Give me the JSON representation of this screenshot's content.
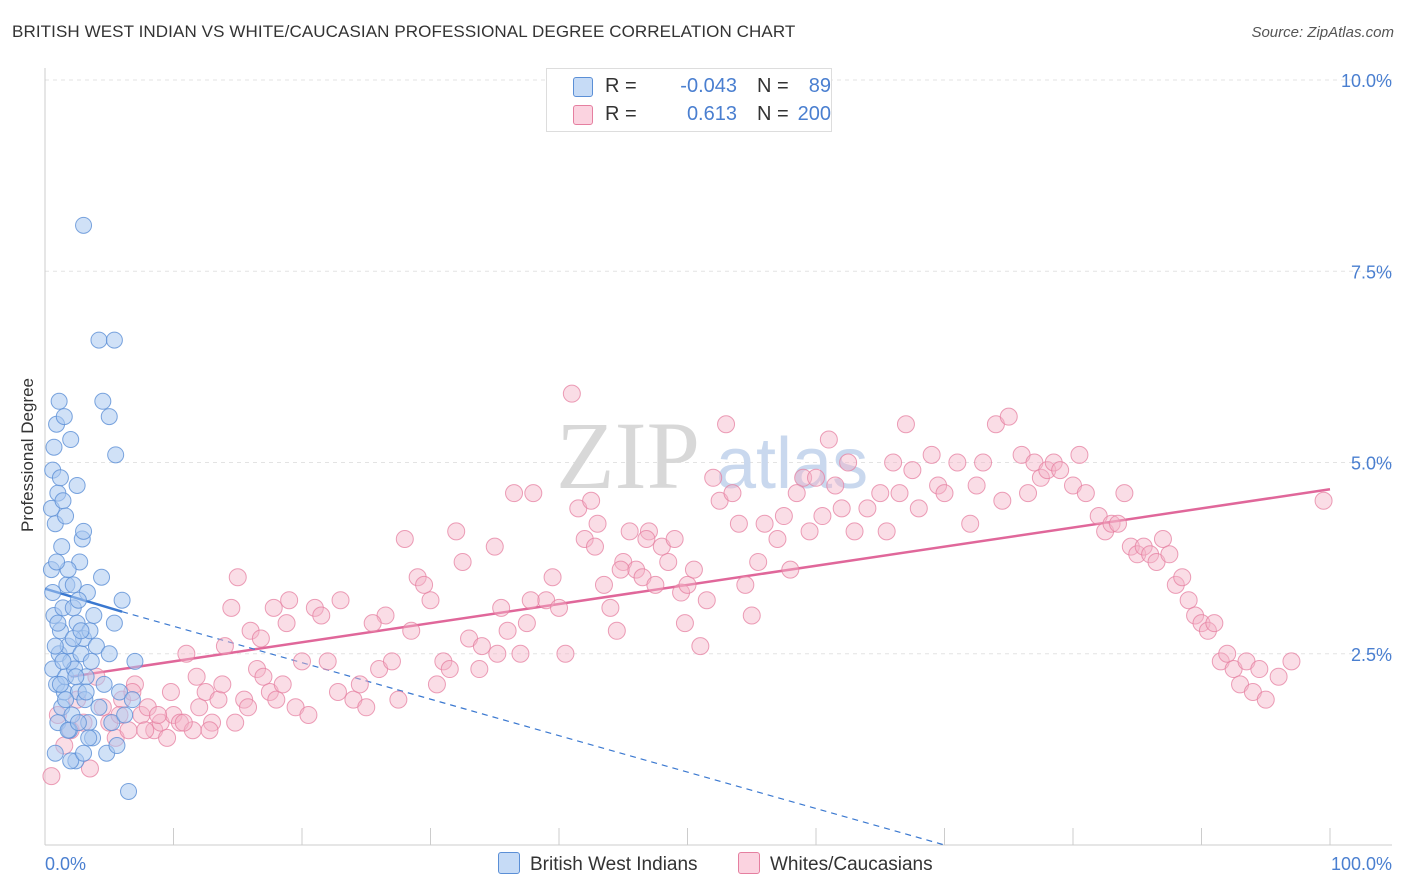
{
  "header": {
    "title": "BRITISH WEST INDIAN VS WHITE/CAUCASIAN PROFESSIONAL DEGREE CORRELATION CHART",
    "source": "Source: ZipAtlas.com"
  },
  "watermark": {
    "zip": "ZIP",
    "atlas": "atlas"
  },
  "legend": {
    "rows": [
      {
        "r_label": "R =",
        "r_value": "-0.043",
        "n_label": "N =",
        "n_value": "89",
        "color": "#a9c8f0"
      },
      {
        "r_label": "R =",
        "r_value": "0.613",
        "n_label": "N =",
        "n_value": "200",
        "color": "#f5b4c8"
      }
    ]
  },
  "bottom_legend": {
    "series1": "British West Indians",
    "series2": "Whites/Caucasians"
  },
  "colors": {
    "blue_fill": "#a9c8f0",
    "blue_stroke": "#5b8fd6",
    "blue_line": "#3a78d0",
    "pink_fill": "#f5b4c8",
    "pink_stroke": "#e57fa0",
    "pink_line": "#e0679a",
    "axis_text": "#4a7fd0",
    "grid": "#e3e3e3"
  },
  "chart_data": {
    "type": "scatter",
    "title": "BRITISH WEST INDIAN VS WHITE/CAUCASIAN PROFESSIONAL DEGREE CORRELATION CHART",
    "xlabel": "",
    "ylabel": "Professional Degree",
    "xlim": [
      0,
      100
    ],
    "ylim": [
      0,
      10.5
    ],
    "x_tick_labels": [
      "0.0%",
      "100.0%"
    ],
    "y_ticks": [
      2.5,
      5.0,
      7.5,
      10.0
    ],
    "y_tick_labels": [
      "2.5%",
      "5.0%",
      "7.5%",
      "10.0%"
    ],
    "series": [
      {
        "name": "British West Indians",
        "r": -0.043,
        "n": 89,
        "trend_solid": {
          "x": [
            0,
            6
          ],
          "y": [
            3.35,
            3.05
          ]
        },
        "trend_dashed": {
          "x": [
            6,
            70
          ],
          "y": [
            3.05,
            0.0
          ]
        },
        "points": [
          [
            0.5,
            3.6
          ],
          [
            0.6,
            2.3
          ],
          [
            0.7,
            3.0
          ],
          [
            0.8,
            1.2
          ],
          [
            0.9,
            2.1
          ],
          [
            1.0,
            1.6
          ],
          [
            1.1,
            2.5
          ],
          [
            1.2,
            2.8
          ],
          [
            1.3,
            1.8
          ],
          [
            1.4,
            3.1
          ],
          [
            1.5,
            2.0
          ],
          [
            1.6,
            2.2
          ],
          [
            1.7,
            3.4
          ],
          [
            1.8,
            2.6
          ],
          [
            1.9,
            1.5
          ],
          [
            2.0,
            2.4
          ],
          [
            2.1,
            1.7
          ],
          [
            2.2,
            3.1
          ],
          [
            2.3,
            2.3
          ],
          [
            2.4,
            1.1
          ],
          [
            2.5,
            2.9
          ],
          [
            2.6,
            2.0
          ],
          [
            2.7,
            3.7
          ],
          [
            2.8,
            2.5
          ],
          [
            2.9,
            4.0
          ],
          [
            3.0,
            2.7
          ],
          [
            3.1,
            1.9
          ],
          [
            3.2,
            2.2
          ],
          [
            3.3,
            3.3
          ],
          [
            3.4,
            1.6
          ],
          [
            3.5,
            2.8
          ],
          [
            3.6,
            2.4
          ],
          [
            3.7,
            1.4
          ],
          [
            3.8,
            3.0
          ],
          [
            4.0,
            2.6
          ],
          [
            4.2,
            1.8
          ],
          [
            4.4,
            3.5
          ],
          [
            4.6,
            2.1
          ],
          [
            4.8,
            1.2
          ],
          [
            5.0,
            2.5
          ],
          [
            5.2,
            1.6
          ],
          [
            5.4,
            2.9
          ],
          [
            5.6,
            1.3
          ],
          [
            5.8,
            2.0
          ],
          [
            6.0,
            3.2
          ],
          [
            6.2,
            1.7
          ],
          [
            6.5,
            0.7
          ],
          [
            6.8,
            1.9
          ],
          [
            7.0,
            2.4
          ],
          [
            0.5,
            4.4
          ],
          [
            0.6,
            4.9
          ],
          [
            0.8,
            4.2
          ],
          [
            1.0,
            4.6
          ],
          [
            1.2,
            4.8
          ],
          [
            1.4,
            4.5
          ],
          [
            1.6,
            4.3
          ],
          [
            0.7,
            5.2
          ],
          [
            0.9,
            5.5
          ],
          [
            1.1,
            5.8
          ],
          [
            1.5,
            5.6
          ],
          [
            2.0,
            5.3
          ],
          [
            2.5,
            4.7
          ],
          [
            3.0,
            4.1
          ],
          [
            5.0,
            5.6
          ],
          [
            5.5,
            5.1
          ],
          [
            4.5,
            5.8
          ],
          [
            3.0,
            8.1
          ],
          [
            4.2,
            6.6
          ],
          [
            5.4,
            6.6
          ],
          [
            1.3,
            3.9
          ],
          [
            1.8,
            3.6
          ],
          [
            2.2,
            3.4
          ],
          [
            2.6,
            3.2
          ],
          [
            0.6,
            3.3
          ],
          [
            0.8,
            2.6
          ],
          [
            1.0,
            2.9
          ],
          [
            1.2,
            2.1
          ],
          [
            1.4,
            2.4
          ],
          [
            1.6,
            1.9
          ],
          [
            1.8,
            1.5
          ],
          [
            2.0,
            1.1
          ],
          [
            2.2,
            2.7
          ],
          [
            2.4,
            2.2
          ],
          [
            2.6,
            1.6
          ],
          [
            2.8,
            2.8
          ],
          [
            3.0,
            1.2
          ],
          [
            3.2,
            2.0
          ],
          [
            3.4,
            1.4
          ],
          [
            0.9,
            3.7
          ]
        ]
      },
      {
        "name": "Whites/Caucasians",
        "r": 0.613,
        "n": 200,
        "trend": {
          "x": [
            2,
            100
          ],
          "y": [
            2.2,
            4.65
          ]
        },
        "points": [
          [
            0.5,
            0.9
          ],
          [
            1.0,
            1.7
          ],
          [
            1.5,
            1.3
          ],
          [
            2.0,
            1.5
          ],
          [
            2.5,
            1.9
          ],
          [
            3.0,
            1.6
          ],
          [
            3.5,
            1.0
          ],
          [
            4.0,
            2.2
          ],
          [
            4.5,
            1.8
          ],
          [
            5.0,
            1.6
          ],
          [
            5.5,
            1.4
          ],
          [
            6.0,
            1.9
          ],
          [
            6.5,
            1.5
          ],
          [
            7.0,
            2.1
          ],
          [
            7.5,
            1.7
          ],
          [
            8.0,
            1.8
          ],
          [
            8.5,
            1.5
          ],
          [
            9.0,
            1.6
          ],
          [
            9.5,
            1.4
          ],
          [
            10.0,
            1.7
          ],
          [
            10.5,
            1.6
          ],
          [
            11.0,
            2.5
          ],
          [
            11.5,
            1.5
          ],
          [
            12.0,
            1.8
          ],
          [
            12.5,
            2.0
          ],
          [
            13.0,
            1.6
          ],
          [
            13.5,
            1.9
          ],
          [
            14.0,
            2.6
          ],
          [
            14.5,
            3.1
          ],
          [
            15.0,
            3.5
          ],
          [
            15.5,
            1.9
          ],
          [
            16.0,
            2.8
          ],
          [
            16.5,
            2.3
          ],
          [
            17.0,
            2.2
          ],
          [
            17.5,
            2.0
          ],
          [
            18.0,
            1.9
          ],
          [
            18.5,
            2.1
          ],
          [
            19.0,
            3.2
          ],
          [
            19.5,
            1.8
          ],
          [
            20.0,
            2.4
          ],
          [
            21.0,
            3.1
          ],
          [
            22.0,
            2.4
          ],
          [
            23.0,
            3.2
          ],
          [
            24.0,
            1.9
          ],
          [
            24.5,
            2.1
          ],
          [
            25.0,
            1.8
          ],
          [
            26.0,
            2.3
          ],
          [
            27.0,
            2.4
          ],
          [
            28.0,
            4.0
          ],
          [
            28.5,
            2.8
          ],
          [
            29.0,
            3.5
          ],
          [
            30.0,
            3.2
          ],
          [
            31.0,
            2.4
          ],
          [
            31.5,
            2.3
          ],
          [
            32.0,
            4.1
          ],
          [
            32.5,
            3.7
          ],
          [
            33.0,
            2.7
          ],
          [
            34.0,
            2.6
          ],
          [
            35.0,
            3.9
          ],
          [
            35.5,
            3.1
          ],
          [
            36.0,
            2.8
          ],
          [
            37.0,
            2.5
          ],
          [
            37.5,
            2.9
          ],
          [
            38.0,
            4.6
          ],
          [
            39.0,
            3.2
          ],
          [
            40.0,
            3.1
          ],
          [
            40.5,
            2.5
          ],
          [
            41.0,
            5.9
          ],
          [
            41.5,
            4.4
          ],
          [
            42.0,
            4.0
          ],
          [
            42.5,
            4.5
          ],
          [
            43.0,
            4.2
          ],
          [
            43.5,
            3.4
          ],
          [
            44.0,
            3.1
          ],
          [
            44.5,
            2.8
          ],
          [
            45.0,
            3.7
          ],
          [
            45.5,
            4.1
          ],
          [
            46.0,
            3.6
          ],
          [
            46.5,
            3.5
          ],
          [
            47.0,
            4.1
          ],
          [
            47.5,
            3.4
          ],
          [
            48.0,
            3.9
          ],
          [
            48.5,
            3.7
          ],
          [
            49.0,
            4.0
          ],
          [
            49.5,
            3.3
          ],
          [
            50.0,
            3.4
          ],
          [
            50.5,
            3.6
          ],
          [
            51.0,
            2.6
          ],
          [
            51.5,
            3.2
          ],
          [
            52.0,
            4.8
          ],
          [
            52.5,
            4.5
          ],
          [
            53.0,
            5.5
          ],
          [
            53.5,
            4.6
          ],
          [
            54.0,
            4.2
          ],
          [
            54.5,
            3.4
          ],
          [
            55.0,
            3.0
          ],
          [
            56.0,
            4.2
          ],
          [
            57.0,
            4.0
          ],
          [
            57.5,
            4.3
          ],
          [
            58.0,
            3.6
          ],
          [
            59.0,
            4.8
          ],
          [
            59.5,
            4.1
          ],
          [
            60.0,
            4.8
          ],
          [
            61.0,
            5.3
          ],
          [
            61.5,
            4.7
          ],
          [
            62.0,
            4.4
          ],
          [
            62.5,
            5.0
          ],
          [
            63.0,
            4.1
          ],
          [
            64.0,
            4.4
          ],
          [
            65.0,
            4.6
          ],
          [
            65.5,
            4.1
          ],
          [
            66.0,
            5.0
          ],
          [
            66.5,
            4.6
          ],
          [
            67.0,
            5.5
          ],
          [
            67.5,
            4.9
          ],
          [
            68.0,
            4.4
          ],
          [
            69.0,
            5.1
          ],
          [
            69.5,
            4.7
          ],
          [
            70.0,
            4.6
          ],
          [
            71.0,
            5.0
          ],
          [
            72.0,
            4.2
          ],
          [
            72.5,
            4.7
          ],
          [
            73.0,
            5.0
          ],
          [
            74.0,
            5.5
          ],
          [
            74.5,
            4.5
          ],
          [
            75.0,
            5.6
          ],
          [
            76.0,
            5.1
          ],
          [
            76.5,
            4.6
          ],
          [
            77.0,
            5.0
          ],
          [
            77.5,
            4.8
          ],
          [
            78.0,
            4.9
          ],
          [
            78.5,
            5.0
          ],
          [
            79.0,
            4.9
          ],
          [
            80.0,
            4.7
          ],
          [
            80.5,
            5.1
          ],
          [
            81.0,
            4.6
          ],
          [
            82.0,
            4.3
          ],
          [
            82.5,
            4.1
          ],
          [
            83.0,
            4.2
          ],
          [
            83.5,
            4.2
          ],
          [
            84.0,
            4.6
          ],
          [
            84.5,
            3.9
          ],
          [
            85.0,
            3.8
          ],
          [
            85.5,
            3.9
          ],
          [
            86.0,
            3.8
          ],
          [
            86.5,
            3.7
          ],
          [
            87.0,
            4.0
          ],
          [
            87.5,
            3.8
          ],
          [
            88.0,
            3.4
          ],
          [
            88.5,
            3.5
          ],
          [
            89.0,
            3.2
          ],
          [
            89.5,
            3.0
          ],
          [
            90.0,
            2.9
          ],
          [
            90.5,
            2.8
          ],
          [
            91.0,
            2.9
          ],
          [
            91.5,
            2.4
          ],
          [
            92.0,
            2.5
          ],
          [
            92.5,
            2.3
          ],
          [
            93.0,
            2.1
          ],
          [
            93.5,
            2.4
          ],
          [
            94.0,
            2.0
          ],
          [
            94.5,
            2.3
          ],
          [
            95.0,
            1.9
          ],
          [
            96.0,
            2.2
          ],
          [
            97.0,
            2.4
          ],
          [
            99.5,
            4.5
          ],
          [
            60.5,
            4.3
          ],
          [
            58.5,
            4.6
          ],
          [
            55.5,
            3.7
          ],
          [
            49.8,
            2.9
          ],
          [
            46.8,
            4.0
          ],
          [
            44.8,
            3.6
          ],
          [
            42.8,
            3.9
          ],
          [
            39.5,
            3.5
          ],
          [
            37.8,
            3.2
          ],
          [
            36.5,
            4.6
          ],
          [
            35.2,
            2.5
          ],
          [
            33.8,
            2.3
          ],
          [
            30.5,
            2.1
          ],
          [
            29.5,
            3.4
          ],
          [
            27.5,
            1.9
          ],
          [
            26.5,
            3.0
          ],
          [
            25.5,
            2.9
          ],
          [
            22.8,
            2.0
          ],
          [
            21.5,
            3.0
          ],
          [
            20.5,
            1.7
          ],
          [
            18.8,
            2.9
          ],
          [
            17.8,
            3.1
          ],
          [
            16.8,
            2.7
          ],
          [
            15.8,
            1.8
          ],
          [
            14.8,
            1.6
          ],
          [
            13.8,
            2.1
          ],
          [
            12.8,
            1.5
          ],
          [
            11.8,
            2.2
          ],
          [
            10.8,
            1.6
          ],
          [
            9.8,
            2.0
          ],
          [
            8.8,
            1.7
          ],
          [
            7.8,
            1.5
          ],
          [
            6.8,
            2.0
          ],
          [
            5.8,
            1.7
          ]
        ]
      }
    ]
  }
}
